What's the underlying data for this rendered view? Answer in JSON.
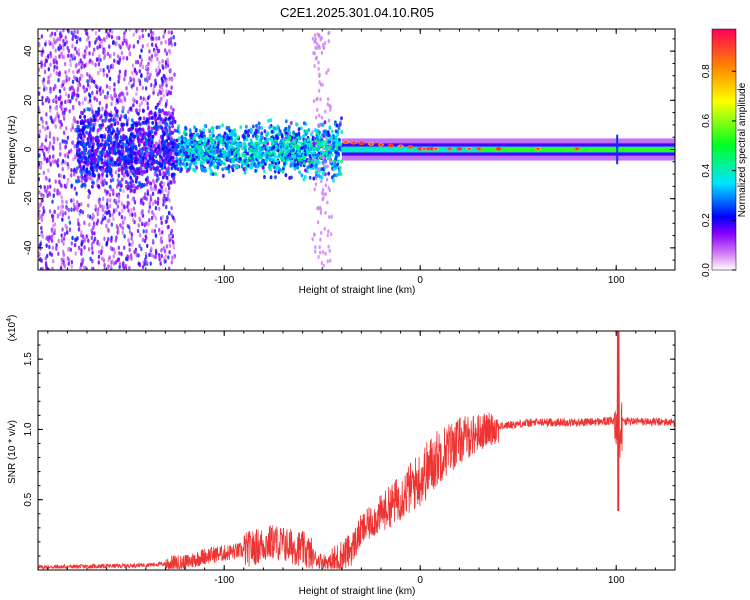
{
  "title": "C2E1.2025.301.04.10.R05",
  "chart_data": [
    {
      "type": "heatmap",
      "xlabel": "Height of straight line (km)",
      "ylabel": "Frequency (Hz)",
      "xlim": [
        -195,
        130
      ],
      "ylim": [
        -49,
        49
      ],
      "xticks": [
        -100,
        0,
        100
      ],
      "yticks": [
        -40,
        -20,
        0,
        20,
        40
      ],
      "xtick_labels": [
        "-100",
        "0",
        "100"
      ],
      "ytick_labels": [
        "-40",
        "-20",
        "0",
        "20",
        "40"
      ],
      "colorbar": {
        "label": "Normalized spectral amplitude",
        "range": [
          0,
          0.97
        ],
        "ticks": [
          0,
          0.2,
          0.4,
          0.6,
          0.8
        ],
        "tick_labels": [
          "0.0",
          "0.2",
          "0.4",
          "0.6",
          "0.8"
        ],
        "colormap": [
          "#ffffff",
          "#d98cf2",
          "#8800ff",
          "#0000ff",
          "#00e5ff",
          "#00ff22",
          "#ffff00",
          "#ff8800",
          "#ff0055"
        ]
      },
      "description_regions": [
        {
          "x_range": [
            -195,
            -125
          ],
          "pattern": "broadband noise, amplitude ~0.1-0.3"
        },
        {
          "x_range": [
            -125,
            -40
          ],
          "pattern": "band |f| < 15 Hz, amplitude ~0.2-0.5"
        },
        {
          "x_range": [
            -40,
            0
          ],
          "pattern": "narrow band near 0-3 Hz, peaks ~0.9"
        },
        {
          "x_range": [
            0,
            130
          ],
          "pattern": "narrow band at 0 Hz, amplitude ~0.4-0.9, spike at 101 km"
        }
      ]
    },
    {
      "type": "line",
      "xlabel": "Height of straight line (km)",
      "ylabel": "SNR (10 * v/v)",
      "yscale_label": "(x10^4)",
      "xlim": [
        -195,
        130
      ],
      "ylim": [
        0,
        1.7
      ],
      "xticks": [
        -100,
        0,
        100
      ],
      "yticks": [
        0.5,
        1.0,
        1.5
      ],
      "xtick_labels": [
        "-100",
        "0",
        "100"
      ],
      "ytick_labels": [
        "0.5",
        "1.0",
        "1.5"
      ],
      "color": "#ee3333",
      "profile_x": [
        -195,
        -150,
        -120,
        -110,
        -90,
        -75,
        -60,
        -52,
        -45,
        -35,
        -30,
        -20,
        -10,
        0,
        10,
        20,
        30,
        40,
        50,
        60,
        80,
        100,
        130
      ],
      "profile_y": [
        0.02,
        0.03,
        0.05,
        0.1,
        0.14,
        0.2,
        0.15,
        0.07,
        0.05,
        0.15,
        0.28,
        0.4,
        0.52,
        0.65,
        0.82,
        0.92,
        0.98,
        1.02,
        1.04,
        1.05,
        1.05,
        1.06,
        1.05
      ],
      "spike": {
        "x": 101,
        "max": 1.72,
        "min": 0.42
      }
    }
  ]
}
